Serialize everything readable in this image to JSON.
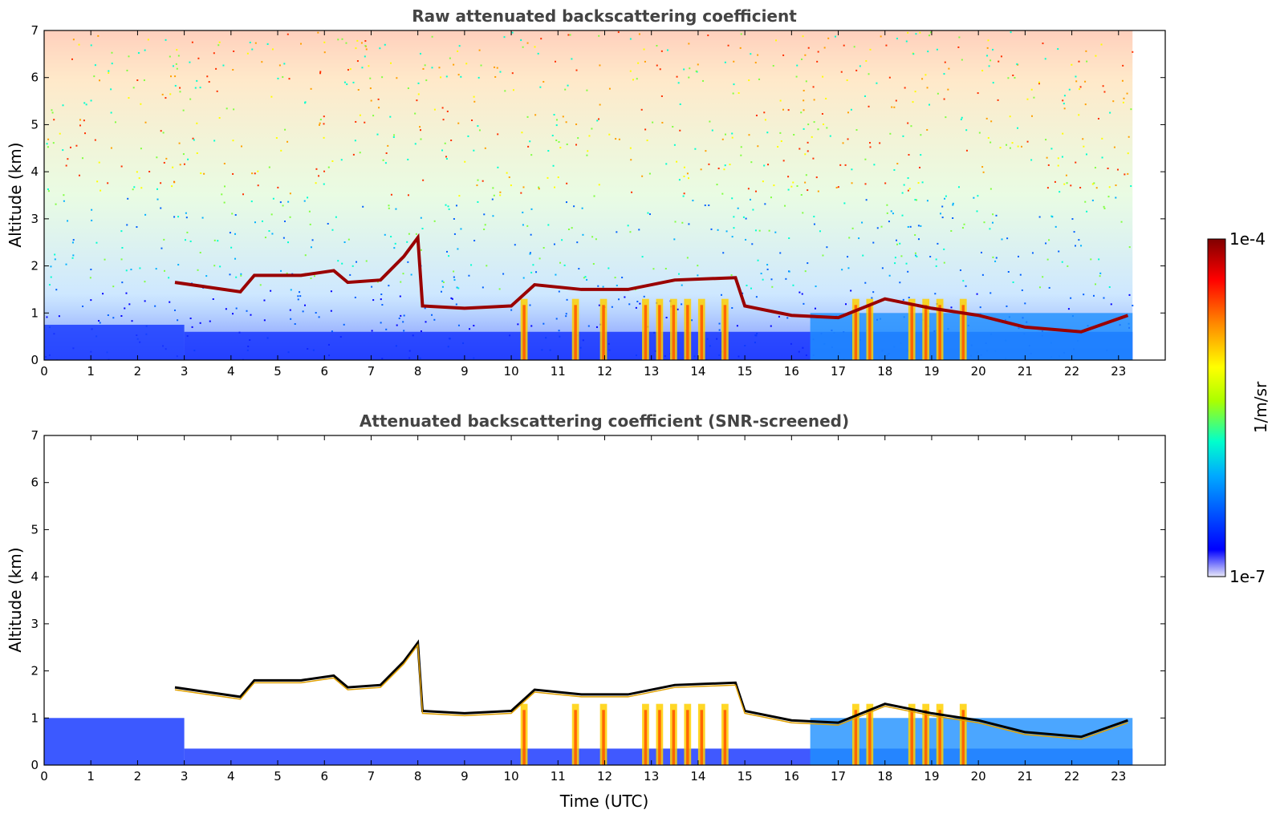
{
  "chart_data": [
    {
      "type": "heatmap",
      "title": "Raw attenuated backscattering coefficient",
      "xlabel": "",
      "ylabel": "Altitude (km)",
      "xlim": [
        0,
        24
      ],
      "ylim": [
        0,
        7
      ],
      "x_ticks": [
        "0",
        "1",
        "2",
        "3",
        "4",
        "5",
        "6",
        "7",
        "8",
        "9",
        "10",
        "11",
        "12",
        "13",
        "14",
        "15",
        "16",
        "17",
        "18",
        "19",
        "20",
        "21",
        "22",
        "23"
      ],
      "y_ticks": [
        "0",
        "1",
        "2",
        "3",
        "4",
        "5",
        "6",
        "7"
      ],
      "data_extent_hours": 23.3,
      "grid": false,
      "cloud_layers_km": [
        {
          "t": 2.8,
          "z": 1.65
        },
        {
          "t": 3.5,
          "z": 1.55
        },
        {
          "t": 4.2,
          "z": 1.45
        },
        {
          "t": 4.5,
          "z": 1.8
        },
        {
          "t": 5.5,
          "z": 1.8
        },
        {
          "t": 6.2,
          "z": 1.9
        },
        {
          "t": 6.5,
          "z": 1.65
        },
        {
          "t": 7.2,
          "z": 1.7
        },
        {
          "t": 7.7,
          "z": 2.2
        },
        {
          "t": 8.0,
          "z": 2.6
        },
        {
          "t": 8.1,
          "z": 1.15
        },
        {
          "t": 9.0,
          "z": 1.1
        },
        {
          "t": 10.0,
          "z": 1.15
        },
        {
          "t": 10.5,
          "z": 1.6
        },
        {
          "t": 11.5,
          "z": 1.5
        },
        {
          "t": 12.5,
          "z": 1.5
        },
        {
          "t": 13.5,
          "z": 1.7
        },
        {
          "t": 14.8,
          "z": 1.75
        },
        {
          "t": 15.0,
          "z": 1.15
        },
        {
          "t": 16.0,
          "z": 0.95
        },
        {
          "t": 17.0,
          "z": 0.9
        },
        {
          "t": 18.0,
          "z": 1.3
        },
        {
          "t": 19.0,
          "z": 1.1
        },
        {
          "t": 20.0,
          "z": 0.95
        },
        {
          "t": 21.0,
          "z": 0.7
        },
        {
          "t": 22.2,
          "z": 0.6
        },
        {
          "t": 23.2,
          "z": 0.95
        }
      ]
    },
    {
      "type": "heatmap",
      "title": "Attenuated backscattering coefficient (SNR-screened)",
      "xlabel": "Time (UTC)",
      "ylabel": "Altitude (km)",
      "xlim": [
        0,
        24
      ],
      "ylim": [
        0,
        7
      ],
      "x_ticks": [
        "0",
        "1",
        "2",
        "3",
        "4",
        "5",
        "6",
        "7",
        "8",
        "9",
        "10",
        "11",
        "12",
        "13",
        "14",
        "15",
        "16",
        "17",
        "18",
        "19",
        "20",
        "21",
        "22",
        "23"
      ],
      "y_ticks": [
        "0",
        "1",
        "2",
        "3",
        "4",
        "5",
        "6",
        "7"
      ],
      "data_extent_hours": 23.3,
      "grid": false
    }
  ],
  "colorbar": {
    "min_label": "1e-7",
    "max_label": "1e-4",
    "label": "1/m/sr",
    "scale": "log",
    "colormap": "jet",
    "colors": [
      "#e8e8f8",
      "#0000ff",
      "#00aaff",
      "#00ffcc",
      "#aaff00",
      "#ffff00",
      "#ff8800",
      "#ff0000",
      "#800000"
    ]
  }
}
